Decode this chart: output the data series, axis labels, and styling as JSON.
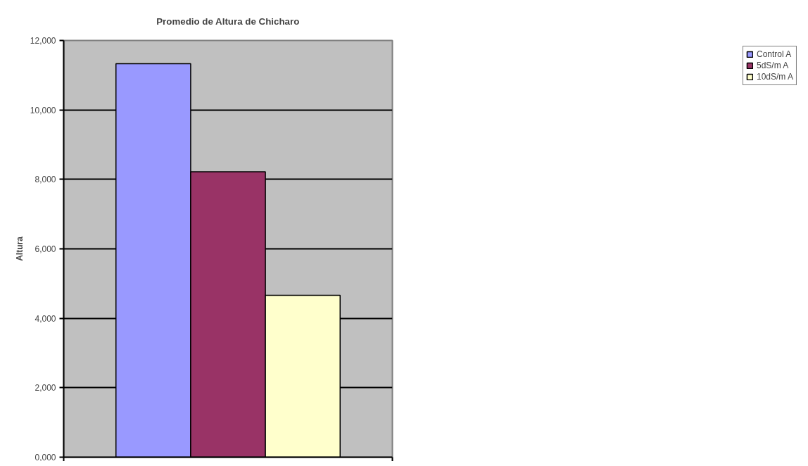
{
  "chart_data": {
    "type": "bar",
    "title": "Promedio de Altura de Chicharo",
    "ylabel": "Altura",
    "categories": [
      null
    ],
    "series": [
      {
        "name": "Control A",
        "color": "#9999ff",
        "values": [
          11330
        ]
      },
      {
        "name": "5dS/m A",
        "color": "#993366",
        "values": [
          8220
        ]
      },
      {
        "name": "10dS/m A",
        "color": "#ffffcc",
        "values": [
          4660
        ]
      }
    ],
    "ylim": [
      0,
      12000
    ],
    "yticks": [
      {
        "value": 0,
        "label": "0,000"
      },
      {
        "value": 2000,
        "label": "2,000"
      },
      {
        "value": 4000,
        "label": "4,000"
      },
      {
        "value": 6000,
        "label": "6,000"
      },
      {
        "value": 8000,
        "label": "8,000"
      },
      {
        "value": 10000,
        "label": "10,000"
      },
      {
        "value": 12000,
        "label": "12,000"
      }
    ],
    "grid": "y",
    "legend": "right"
  }
}
